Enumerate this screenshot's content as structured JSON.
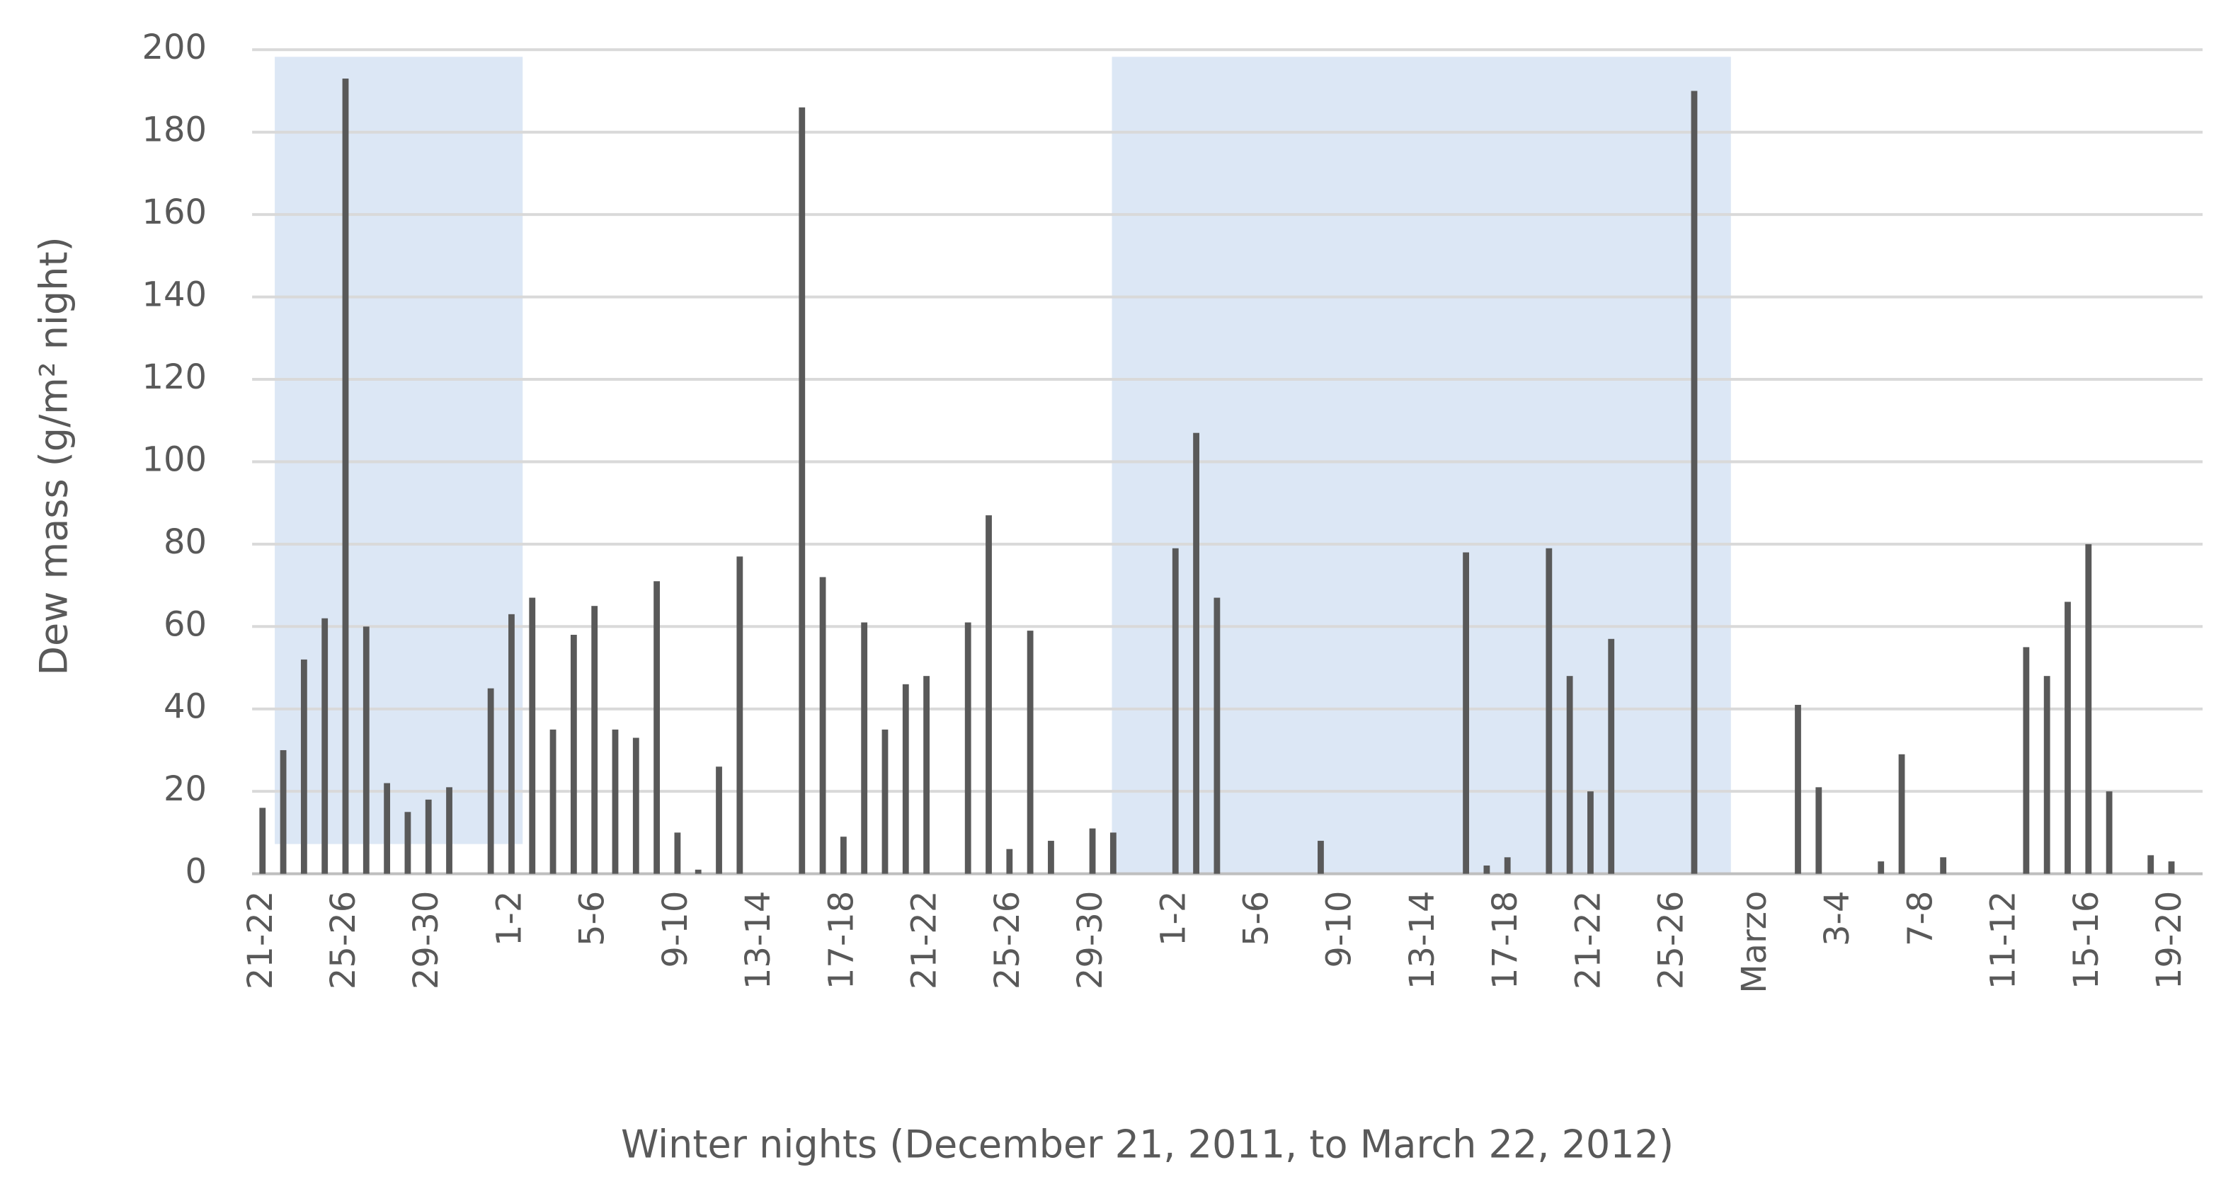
{
  "chart_data": {
    "type": "bar",
    "xlabel": "Winter nights (December 21, 2011, to March 22, 2012)",
    "ylabel": "Dew mass (g/m² night)",
    "categories": [
      "21-22",
      null,
      null,
      null,
      "25-26",
      null,
      null,
      null,
      "29-30",
      null,
      null,
      null,
      "1-2",
      null,
      null,
      null,
      "5-6",
      null,
      null,
      null,
      "9-10",
      null,
      null,
      null,
      "13-14",
      null,
      null,
      null,
      "17-18",
      null,
      null,
      null,
      "21-22",
      null,
      null,
      null,
      "25-26",
      null,
      null,
      null,
      "29-30",
      null,
      null,
      null,
      "1-2",
      null,
      null,
      null,
      "5-6",
      null,
      null,
      null,
      "9-10",
      null,
      null,
      null,
      "13-14",
      null,
      null,
      null,
      "17-18",
      null,
      null,
      null,
      "21-22",
      null,
      null,
      null,
      "25-26",
      null,
      null,
      null,
      "Marzo",
      null,
      null,
      null,
      "3-4",
      null,
      null,
      null,
      "7-8",
      null,
      null,
      null,
      "11-12",
      null,
      null,
      null,
      "15-16",
      null,
      null,
      null,
      "19-20",
      null
    ],
    "values": [
      16,
      30,
      52,
      62,
      193,
      60,
      22,
      15,
      18,
      21,
      null,
      45,
      63,
      67,
      35,
      58,
      65,
      35,
      33,
      71,
      10,
      1,
      26,
      77,
      null,
      null,
      186,
      72,
      9,
      61,
      35,
      46,
      48,
      null,
      61,
      87,
      6,
      59,
      8,
      null,
      11,
      10,
      null,
      null,
      79,
      107,
      67,
      null,
      null,
      null,
      null,
      8,
      null,
      null,
      null,
      null,
      null,
      null,
      78,
      2,
      4,
      null,
      79,
      48,
      20,
      57,
      null,
      null,
      null,
      190,
      null,
      null,
      null,
      null,
      41,
      21,
      null,
      null,
      3,
      29,
      null,
      4,
      null,
      null,
      null,
      55,
      48,
      66,
      80,
      20,
      null,
      4.5,
      3,
      null
    ],
    "color": "#595959",
    "ylim": [
      0,
      200
    ],
    "yticks": [
      0,
      20,
      40,
      60,
      80,
      100,
      120,
      140,
      160,
      180,
      200
    ],
    "grid": true
  }
}
